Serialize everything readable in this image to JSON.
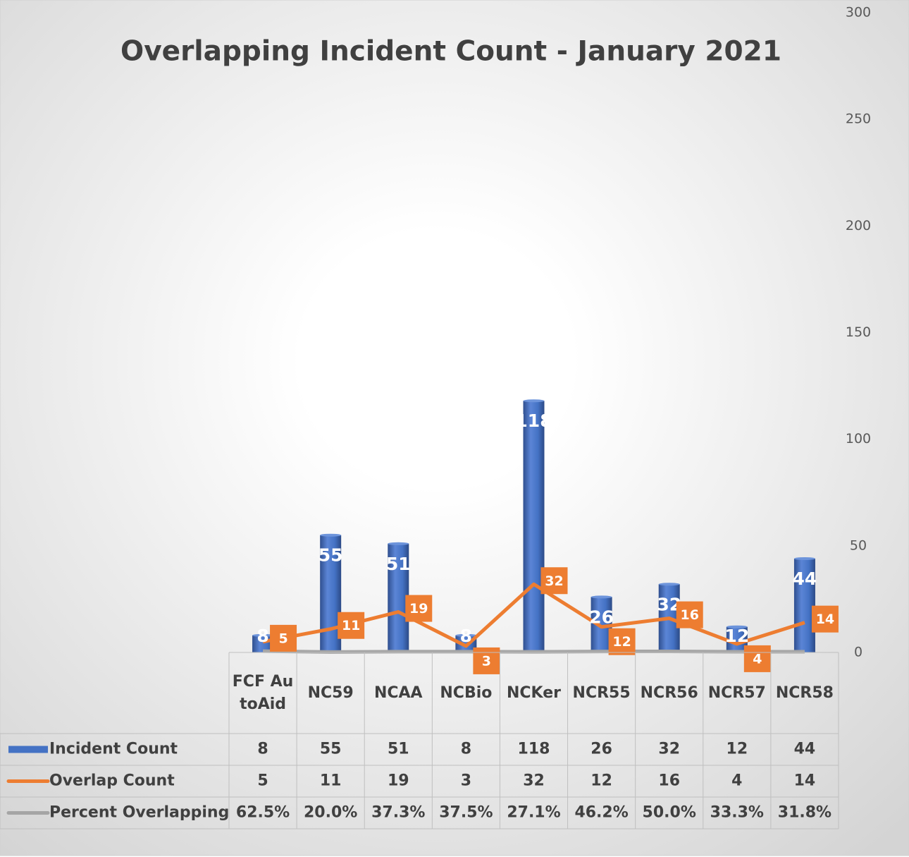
{
  "chart_data": {
    "type": "bar",
    "title": "Overlapping Incident Count - January 2021",
    "categories": [
      "FCF AutoAid",
      "NC59",
      "NCAA",
      "NCBio",
      "NCKer",
      "NCR55",
      "NCR56",
      "NCR57",
      "NCR58"
    ],
    "series": [
      {
        "name": "Incident Count",
        "type": "bar",
        "color": "#4472c4",
        "values": [
          8,
          55,
          51,
          8,
          118,
          26,
          32,
          12,
          44
        ]
      },
      {
        "name": "Overlap Count",
        "type": "line",
        "color": "#ed7d31",
        "values": [
          5,
          11,
          19,
          3,
          32,
          12,
          16,
          4,
          14
        ]
      },
      {
        "name": "Percent Overlapping",
        "type": "line",
        "color": "#a5a5a5",
        "values": [
          0.625,
          0.2,
          0.373,
          0.375,
          0.271,
          0.462,
          0.5,
          0.333,
          0.318
        ],
        "value_labels": [
          "62.5%",
          "20.0%",
          "37.3%",
          "37.5%",
          "27.1%",
          "46.2%",
          "50.0%",
          "33.3%",
          "31.8%"
        ]
      }
    ],
    "ylim": [
      0,
      300
    ],
    "yticks": [
      0,
      50,
      100,
      150,
      200,
      250,
      300
    ],
    "axis_side": "right",
    "data_table": true
  }
}
